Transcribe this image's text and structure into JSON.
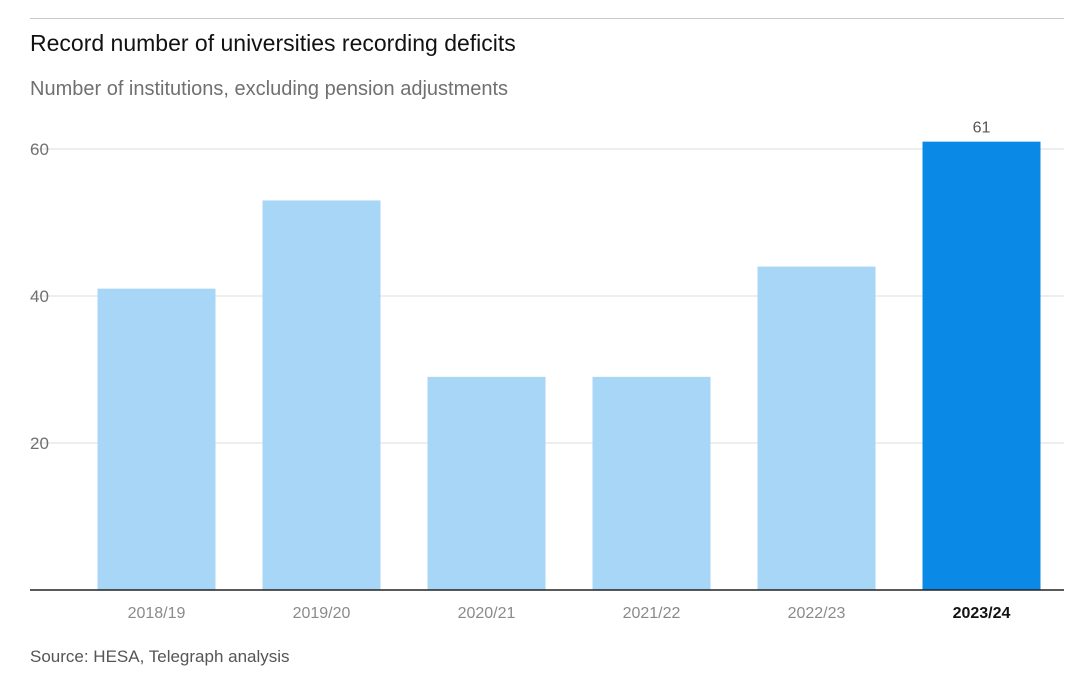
{
  "chart_data": {
    "type": "bar",
    "title": "Record number of universities recording deficits",
    "subtitle": "Number of institutions, excluding pension adjustments",
    "source": "Source: HESA, Telegraph analysis",
    "categories": [
      "2018/19",
      "2019/20",
      "2020/21",
      "2021/22",
      "2022/23",
      "2023/24"
    ],
    "values": [
      41,
      53,
      29,
      29,
      44,
      61
    ],
    "highlight_index": 5,
    "data_labels": [
      null,
      null,
      null,
      null,
      null,
      "61"
    ],
    "yticks": [
      20,
      40,
      60
    ],
    "ylim": [
      0,
      63
    ],
    "grid": true,
    "colors": {
      "bar": "#a8d6f7",
      "highlight_bar": "#0a8ae6",
      "grid": "#dcdcdc",
      "axis": "#222222"
    }
  }
}
